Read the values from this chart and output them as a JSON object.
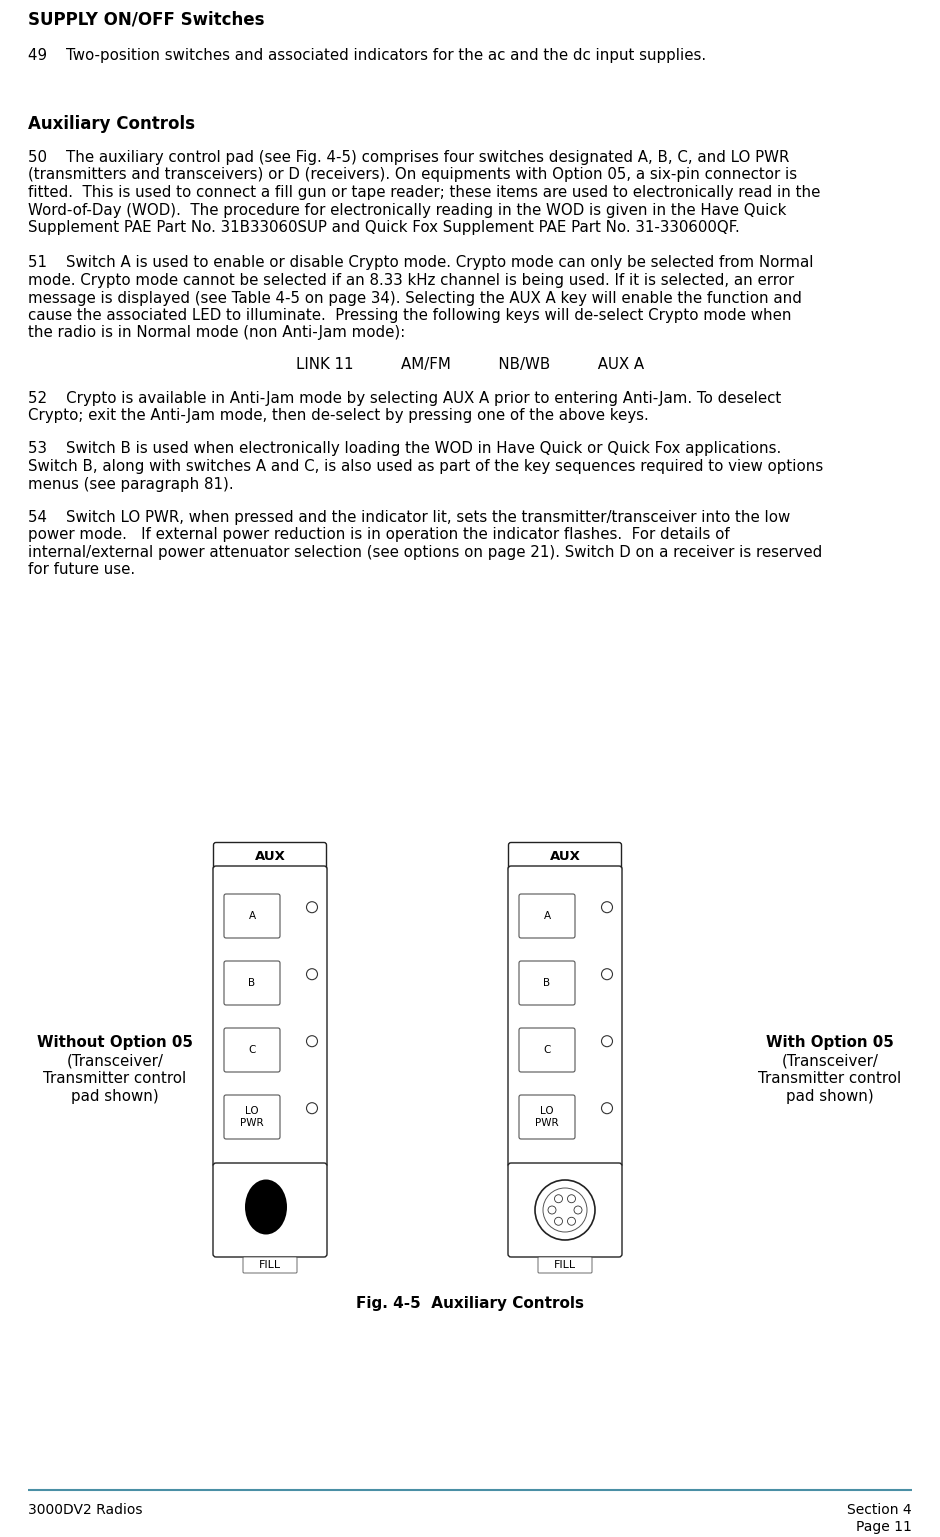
{
  "title": "SUPPLY ON/OFF Switches",
  "para49": "49    Two-position switches and associated indicators for the ac and the dc input supplies.",
  "section_title": "Auxiliary Controls",
  "para50_lines": [
    "50    The auxiliary control pad (see Fig. 4-5) comprises four switches designated A, B, C, and LO PWR",
    "(transmitters and transceivers) or D (receivers). On equipments with Option 05, a six-pin connector is",
    "fitted.  This is used to connect a fill gun or tape reader; these items are used to electronically read in the",
    "Word-of-Day (WOD).  The procedure for electronically reading in the WOD is given in the Have Quick",
    "Supplement PAE Part No. 31B33060SUP and Quick Fox Supplement PAE Part No. 31-330600QF."
  ],
  "para51_lines": [
    "51    Switch A is used to enable or disable Crypto mode. Crypto mode can only be selected from Normal",
    "mode. Crypto mode cannot be selected if an 8.33 kHz channel is being used. If it is selected, an error",
    "message is displayed (see Table 4-5 on page 34). Selecting the AUX A key will enable the function and",
    "cause the associated LED to illuminate.  Pressing the following keys will de-select Crypto mode when",
    "the radio is in Normal mode (non Anti-Jam mode):"
  ],
  "key_line": "LINK 11          AM/FM          NB/WB          AUX A",
  "para52_lines": [
    "52    Crypto is available in Anti-Jam mode by selecting AUX A prior to entering Anti-Jam. To deselect",
    "Crypto; exit the Anti-Jam mode, then de-select by pressing one of the above keys."
  ],
  "para53_lines": [
    "53    Switch B is used when electronically loading the WOD in Have Quick or Quick Fox applications.",
    "Switch B, along with switches A and C, is also used as part of the key sequences required to view options",
    "menus (see paragraph 81)."
  ],
  "para54_lines": [
    "54    Switch LO PWR, when pressed and the indicator lit, sets the transmitter/transceiver into the low",
    "power mode.   If external power reduction is in operation the indicator flashes.  For details of",
    "internal/external power attenuator selection (see options on page 21). Switch D on a receiver is reserved",
    "for future use."
  ],
  "fig_caption": "Fig. 4-5  Auxiliary Controls",
  "left_label": [
    "Without Option 05",
    "(Transceiver/",
    "Transmitter control",
    "pad shown)"
  ],
  "right_label": [
    "With Option 05",
    "(Transceiver/",
    "Transmitter control",
    "pad shown)"
  ],
  "footer_left": "3000DV2 Radios",
  "footer_right1": "Section 4",
  "footer_right2": "Page 11",
  "bg_color": "#ffffff",
  "text_color": "#000000",
  "line_color": "#4a8fa5"
}
